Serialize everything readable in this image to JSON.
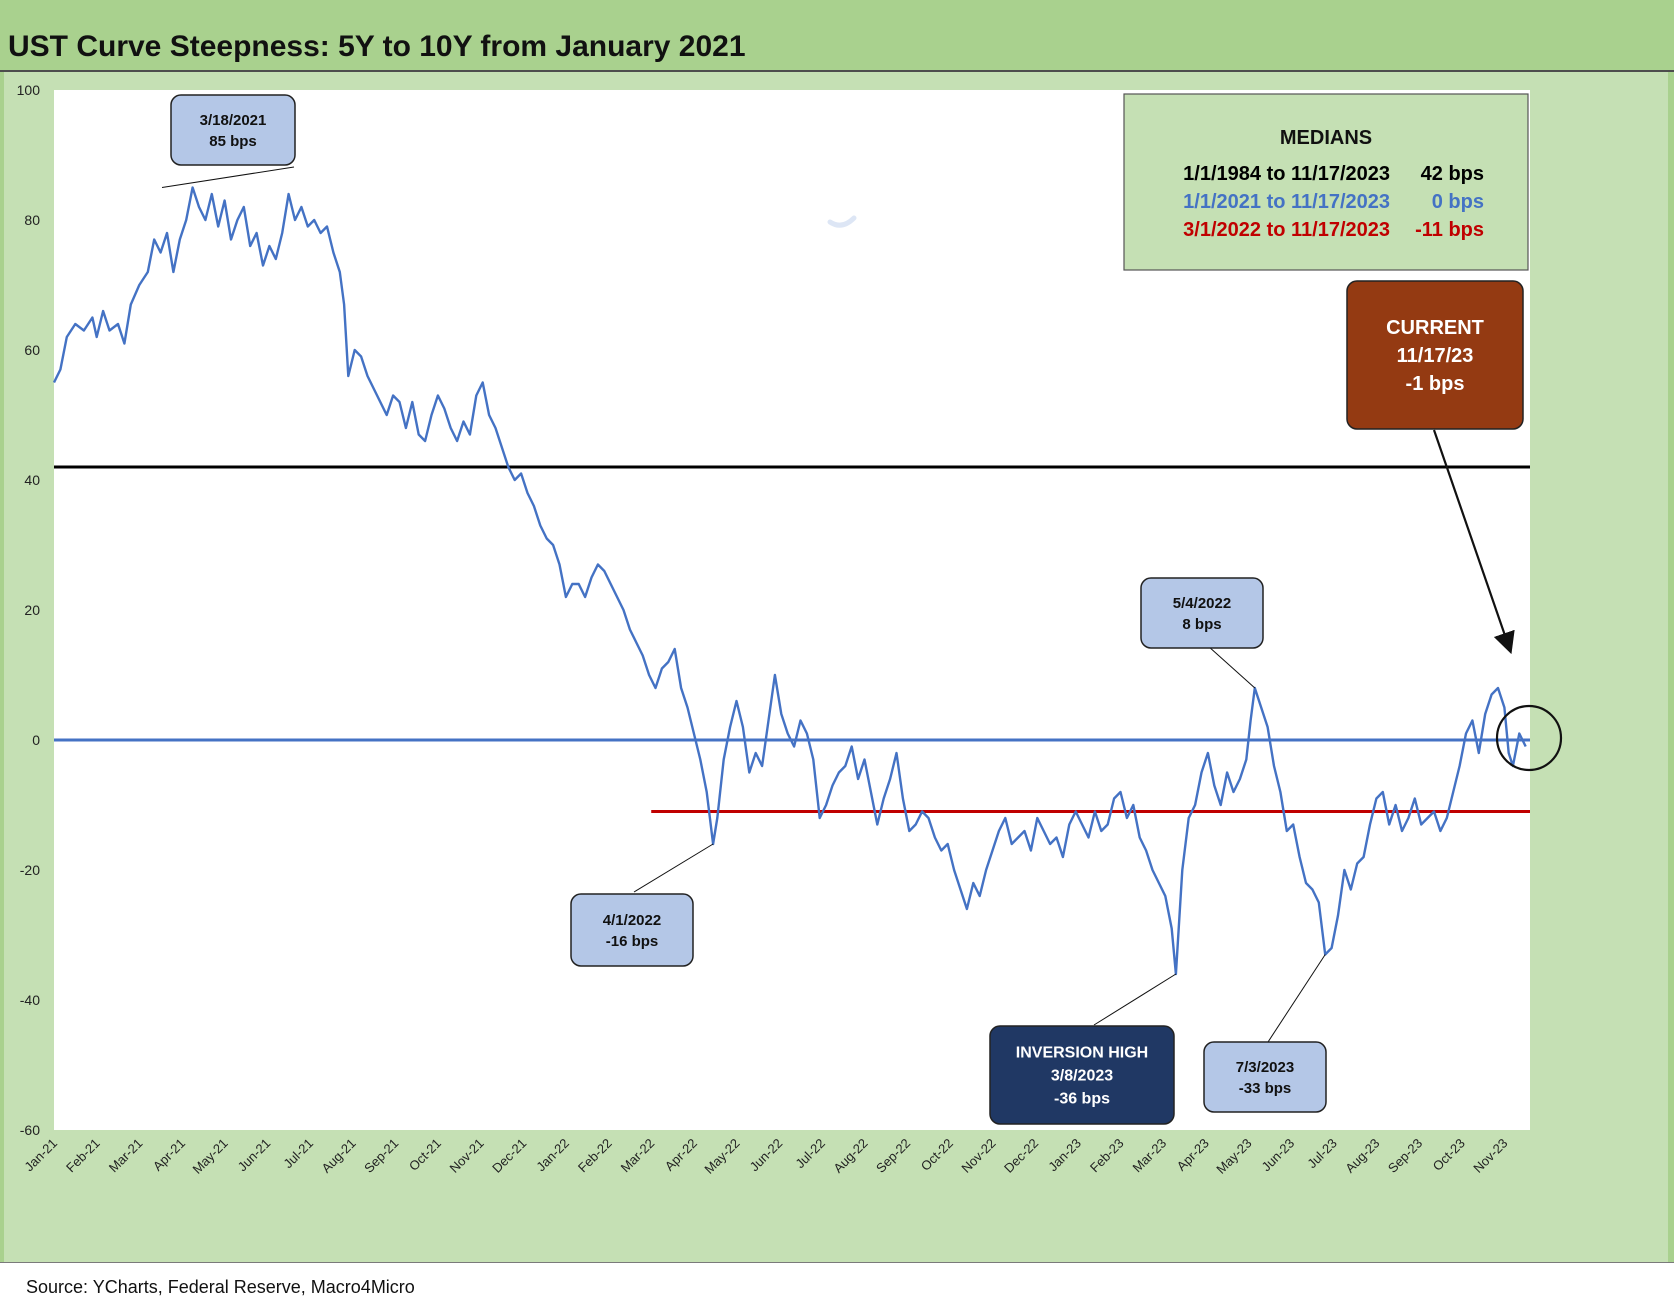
{
  "title": "UST Curve Steepness: 5Y to 10Y from January 2021",
  "source": "Source: YCharts, Federal Reserve, Macro4Micro",
  "colors": {
    "background_frame": "#a9d18e",
    "plot_area": "#ffffff",
    "series_line": "#4472c4",
    "median_long": "#000000",
    "median_2021": "#4472c4",
    "median_2022": "#c00000",
    "callout_fill": "#b4c7e7",
    "inversion_fill": "#203864",
    "current_fill": "#943a12"
  },
  "medians_box": {
    "title": "MEDIANS",
    "rows": [
      {
        "period": "1/1/1984 to 11/17/2023",
        "value": "42 bps",
        "color": "#000000"
      },
      {
        "period": "1/1/2021 to 11/17/2023",
        "value": "0 bps",
        "color": "#4472c4"
      },
      {
        "period": "3/1/2022 to 11/17/2023",
        "value": "-11 bps",
        "color": "#c00000"
      }
    ]
  },
  "callouts": {
    "peak": {
      "date": "3/18/2021",
      "value": "85 bps"
    },
    "apr22": {
      "date": "4/1/2022",
      "value": "-16 bps"
    },
    "may22": {
      "date": "5/4/2022",
      "value": "8 bps"
    },
    "inversion": {
      "label": "INVERSION HIGH",
      "date": "3/8/2023",
      "value": "-36 bps"
    },
    "jul23": {
      "date": "7/3/2023",
      "value": "-33 bps"
    },
    "current": {
      "label": "CURRENT",
      "date": "11/17/23",
      "value": "-1 bps"
    }
  },
  "chart_data": {
    "type": "line",
    "title": "UST Curve Steepness: 5Y to 10Y from January 2021",
    "ylim": [
      -60,
      100
    ],
    "yticks": [
      -60,
      -40,
      -20,
      0,
      20,
      40,
      60,
      80,
      100
    ],
    "x_tick_labels": [
      "Jan-21",
      "Feb-21",
      "Mar-21",
      "Apr-21",
      "May-21",
      "Jun-21",
      "Jul-21",
      "Aug-21",
      "Sep-21",
      "Oct-21",
      "Nov-21",
      "Dec-21",
      "Jan-22",
      "Feb-22",
      "Mar-22",
      "Apr-22",
      "May-22",
      "Jun-22",
      "Jul-22",
      "Aug-22",
      "Sep-22",
      "Oct-22",
      "Nov-22",
      "Dec-22",
      "Jan-23",
      "Feb-23",
      "Mar-23",
      "Apr-23",
      "May-23",
      "Jun-23",
      "Jul-23",
      "Aug-23",
      "Sep-23",
      "Oct-23",
      "Nov-23"
    ],
    "x_range_months": [
      0,
      34.6
    ],
    "reference_lines": [
      {
        "value": 42,
        "from_month": 0,
        "color": "#000000"
      },
      {
        "value": 0,
        "from_month": 0,
        "color": "#4472c4"
      },
      {
        "value": -11,
        "from_month": 14.0,
        "color": "#c00000"
      }
    ],
    "series": [
      {
        "color": "#4472c4",
        "points": [
          [
            0.0,
            55
          ],
          [
            0.15,
            57
          ],
          [
            0.3,
            62
          ],
          [
            0.5,
            64
          ],
          [
            0.7,
            63
          ],
          [
            0.9,
            65
          ],
          [
            1.0,
            62
          ],
          [
            1.15,
            66
          ],
          [
            1.3,
            63
          ],
          [
            1.5,
            64
          ],
          [
            1.65,
            61
          ],
          [
            1.8,
            67
          ],
          [
            2.0,
            70
          ],
          [
            2.2,
            72
          ],
          [
            2.35,
            77
          ],
          [
            2.5,
            75
          ],
          [
            2.65,
            78
          ],
          [
            2.8,
            72
          ],
          [
            2.95,
            77
          ],
          [
            3.1,
            80
          ],
          [
            3.25,
            85
          ],
          [
            3.4,
            82
          ],
          [
            3.55,
            80
          ],
          [
            3.7,
            84
          ],
          [
            3.85,
            79
          ],
          [
            4.0,
            83
          ],
          [
            4.15,
            77
          ],
          [
            4.3,
            80
          ],
          [
            4.45,
            82
          ],
          [
            4.6,
            76
          ],
          [
            4.75,
            78
          ],
          [
            4.9,
            73
          ],
          [
            5.05,
            76
          ],
          [
            5.2,
            74
          ],
          [
            5.35,
            78
          ],
          [
            5.5,
            84
          ],
          [
            5.65,
            80
          ],
          [
            5.8,
            82
          ],
          [
            5.95,
            79
          ],
          [
            6.1,
            80
          ],
          [
            6.25,
            78
          ],
          [
            6.4,
            79
          ],
          [
            6.55,
            75
          ],
          [
            6.7,
            72
          ],
          [
            6.8,
            67
          ],
          [
            6.9,
            56
          ],
          [
            7.05,
            60
          ],
          [
            7.2,
            59
          ],
          [
            7.35,
            56
          ],
          [
            7.5,
            54
          ],
          [
            7.65,
            52
          ],
          [
            7.8,
            50
          ],
          [
            7.95,
            53
          ],
          [
            8.1,
            52
          ],
          [
            8.25,
            48
          ],
          [
            8.4,
            52
          ],
          [
            8.55,
            47
          ],
          [
            8.7,
            46
          ],
          [
            8.85,
            50
          ],
          [
            9.0,
            53
          ],
          [
            9.15,
            51
          ],
          [
            9.3,
            48
          ],
          [
            9.45,
            46
          ],
          [
            9.6,
            49
          ],
          [
            9.75,
            47
          ],
          [
            9.9,
            53
          ],
          [
            10.05,
            55
          ],
          [
            10.2,
            50
          ],
          [
            10.35,
            48
          ],
          [
            10.5,
            45
          ],
          [
            10.65,
            42
          ],
          [
            10.8,
            40
          ],
          [
            10.95,
            41
          ],
          [
            11.1,
            38
          ],
          [
            11.25,
            36
          ],
          [
            11.4,
            33
          ],
          [
            11.55,
            31
          ],
          [
            11.7,
            30
          ],
          [
            11.85,
            27
          ],
          [
            12.0,
            22
          ],
          [
            12.15,
            24
          ],
          [
            12.3,
            24
          ],
          [
            12.45,
            22
          ],
          [
            12.6,
            25
          ],
          [
            12.75,
            27
          ],
          [
            12.9,
            26
          ],
          [
            13.05,
            24
          ],
          [
            13.2,
            22
          ],
          [
            13.35,
            20
          ],
          [
            13.5,
            17
          ],
          [
            13.65,
            15
          ],
          [
            13.8,
            13
          ],
          [
            13.95,
            10
          ],
          [
            14.1,
            8
          ],
          [
            14.25,
            11
          ],
          [
            14.4,
            12
          ],
          [
            14.55,
            14
          ],
          [
            14.7,
            8
          ],
          [
            14.85,
            5
          ],
          [
            15.0,
            1
          ],
          [
            15.15,
            -3
          ],
          [
            15.3,
            -8
          ],
          [
            15.45,
            -16
          ],
          [
            15.55,
            -12
          ],
          [
            15.7,
            -3
          ],
          [
            15.85,
            2
          ],
          [
            16.0,
            6
          ],
          [
            16.15,
            2
          ],
          [
            16.3,
            -5
          ],
          [
            16.45,
            -2
          ],
          [
            16.6,
            -4
          ],
          [
            16.75,
            3
          ],
          [
            16.9,
            10
          ],
          [
            17.05,
            4
          ],
          [
            17.2,
            1
          ],
          [
            17.35,
            -1
          ],
          [
            17.5,
            3
          ],
          [
            17.65,
            1
          ],
          [
            17.8,
            -3
          ],
          [
            17.95,
            -12
          ],
          [
            18.1,
            -10
          ],
          [
            18.25,
            -7
          ],
          [
            18.4,
            -5
          ],
          [
            18.55,
            -4
          ],
          [
            18.7,
            -1
          ],
          [
            18.85,
            -6
          ],
          [
            19.0,
            -3
          ],
          [
            19.15,
            -8
          ],
          [
            19.3,
            -13
          ],
          [
            19.45,
            -9
          ],
          [
            19.6,
            -6
          ],
          [
            19.75,
            -2
          ],
          [
            19.9,
            -9
          ],
          [
            20.05,
            -14
          ],
          [
            20.2,
            -13
          ],
          [
            20.35,
            -11
          ],
          [
            20.5,
            -12
          ],
          [
            20.65,
            -15
          ],
          [
            20.8,
            -17
          ],
          [
            20.95,
            -16
          ],
          [
            21.1,
            -20
          ],
          [
            21.25,
            -23
          ],
          [
            21.4,
            -26
          ],
          [
            21.55,
            -22
          ],
          [
            21.7,
            -24
          ],
          [
            21.85,
            -20
          ],
          [
            22.0,
            -17
          ],
          [
            22.15,
            -14
          ],
          [
            22.3,
            -12
          ],
          [
            22.45,
            -16
          ],
          [
            22.6,
            -15
          ],
          [
            22.75,
            -14
          ],
          [
            22.9,
            -17
          ],
          [
            23.05,
            -12
          ],
          [
            23.2,
            -14
          ],
          [
            23.35,
            -16
          ],
          [
            23.5,
            -15
          ],
          [
            23.65,
            -18
          ],
          [
            23.8,
            -13
          ],
          [
            23.95,
            -11
          ],
          [
            24.1,
            -13
          ],
          [
            24.25,
            -15
          ],
          [
            24.4,
            -11
          ],
          [
            24.55,
            -14
          ],
          [
            24.7,
            -13
          ],
          [
            24.85,
            -9
          ],
          [
            25.0,
            -8
          ],
          [
            25.15,
            -12
          ],
          [
            25.3,
            -10
          ],
          [
            25.45,
            -15
          ],
          [
            25.6,
            -17
          ],
          [
            25.75,
            -20
          ],
          [
            25.9,
            -22
          ],
          [
            26.05,
            -24
          ],
          [
            26.2,
            -29
          ],
          [
            26.3,
            -36
          ],
          [
            26.45,
            -20
          ],
          [
            26.6,
            -12
          ],
          [
            26.75,
            -10
          ],
          [
            26.9,
            -5
          ],
          [
            27.05,
            -2
          ],
          [
            27.2,
            -7
          ],
          [
            27.35,
            -10
          ],
          [
            27.5,
            -5
          ],
          [
            27.65,
            -8
          ],
          [
            27.8,
            -6
          ],
          [
            27.95,
            -3
          ],
          [
            28.05,
            3
          ],
          [
            28.15,
            8
          ],
          [
            28.3,
            5
          ],
          [
            28.45,
            2
          ],
          [
            28.6,
            -4
          ],
          [
            28.75,
            -8
          ],
          [
            28.9,
            -14
          ],
          [
            29.05,
            -13
          ],
          [
            29.2,
            -18
          ],
          [
            29.35,
            -22
          ],
          [
            29.5,
            -23
          ],
          [
            29.65,
            -25
          ],
          [
            29.8,
            -33
          ],
          [
            29.95,
            -32
          ],
          [
            30.1,
            -27
          ],
          [
            30.25,
            -20
          ],
          [
            30.4,
            -23
          ],
          [
            30.55,
            -19
          ],
          [
            30.7,
            -18
          ],
          [
            30.85,
            -13
          ],
          [
            31.0,
            -9
          ],
          [
            31.15,
            -8
          ],
          [
            31.3,
            -13
          ],
          [
            31.45,
            -10
          ],
          [
            31.6,
            -14
          ],
          [
            31.75,
            -12
          ],
          [
            31.9,
            -9
          ],
          [
            32.05,
            -13
          ],
          [
            32.2,
            -12
          ],
          [
            32.35,
            -11
          ],
          [
            32.5,
            -14
          ],
          [
            32.65,
            -12
          ],
          [
            32.8,
            -8
          ],
          [
            32.95,
            -4
          ],
          [
            33.1,
            1
          ],
          [
            33.25,
            3
          ],
          [
            33.4,
            -2
          ],
          [
            33.55,
            4
          ],
          [
            33.7,
            7
          ],
          [
            33.85,
            8
          ],
          [
            34.0,
            5
          ],
          [
            34.1,
            -2
          ],
          [
            34.2,
            -4
          ],
          [
            34.35,
            1
          ],
          [
            34.5,
            -1
          ]
        ]
      }
    ]
  }
}
